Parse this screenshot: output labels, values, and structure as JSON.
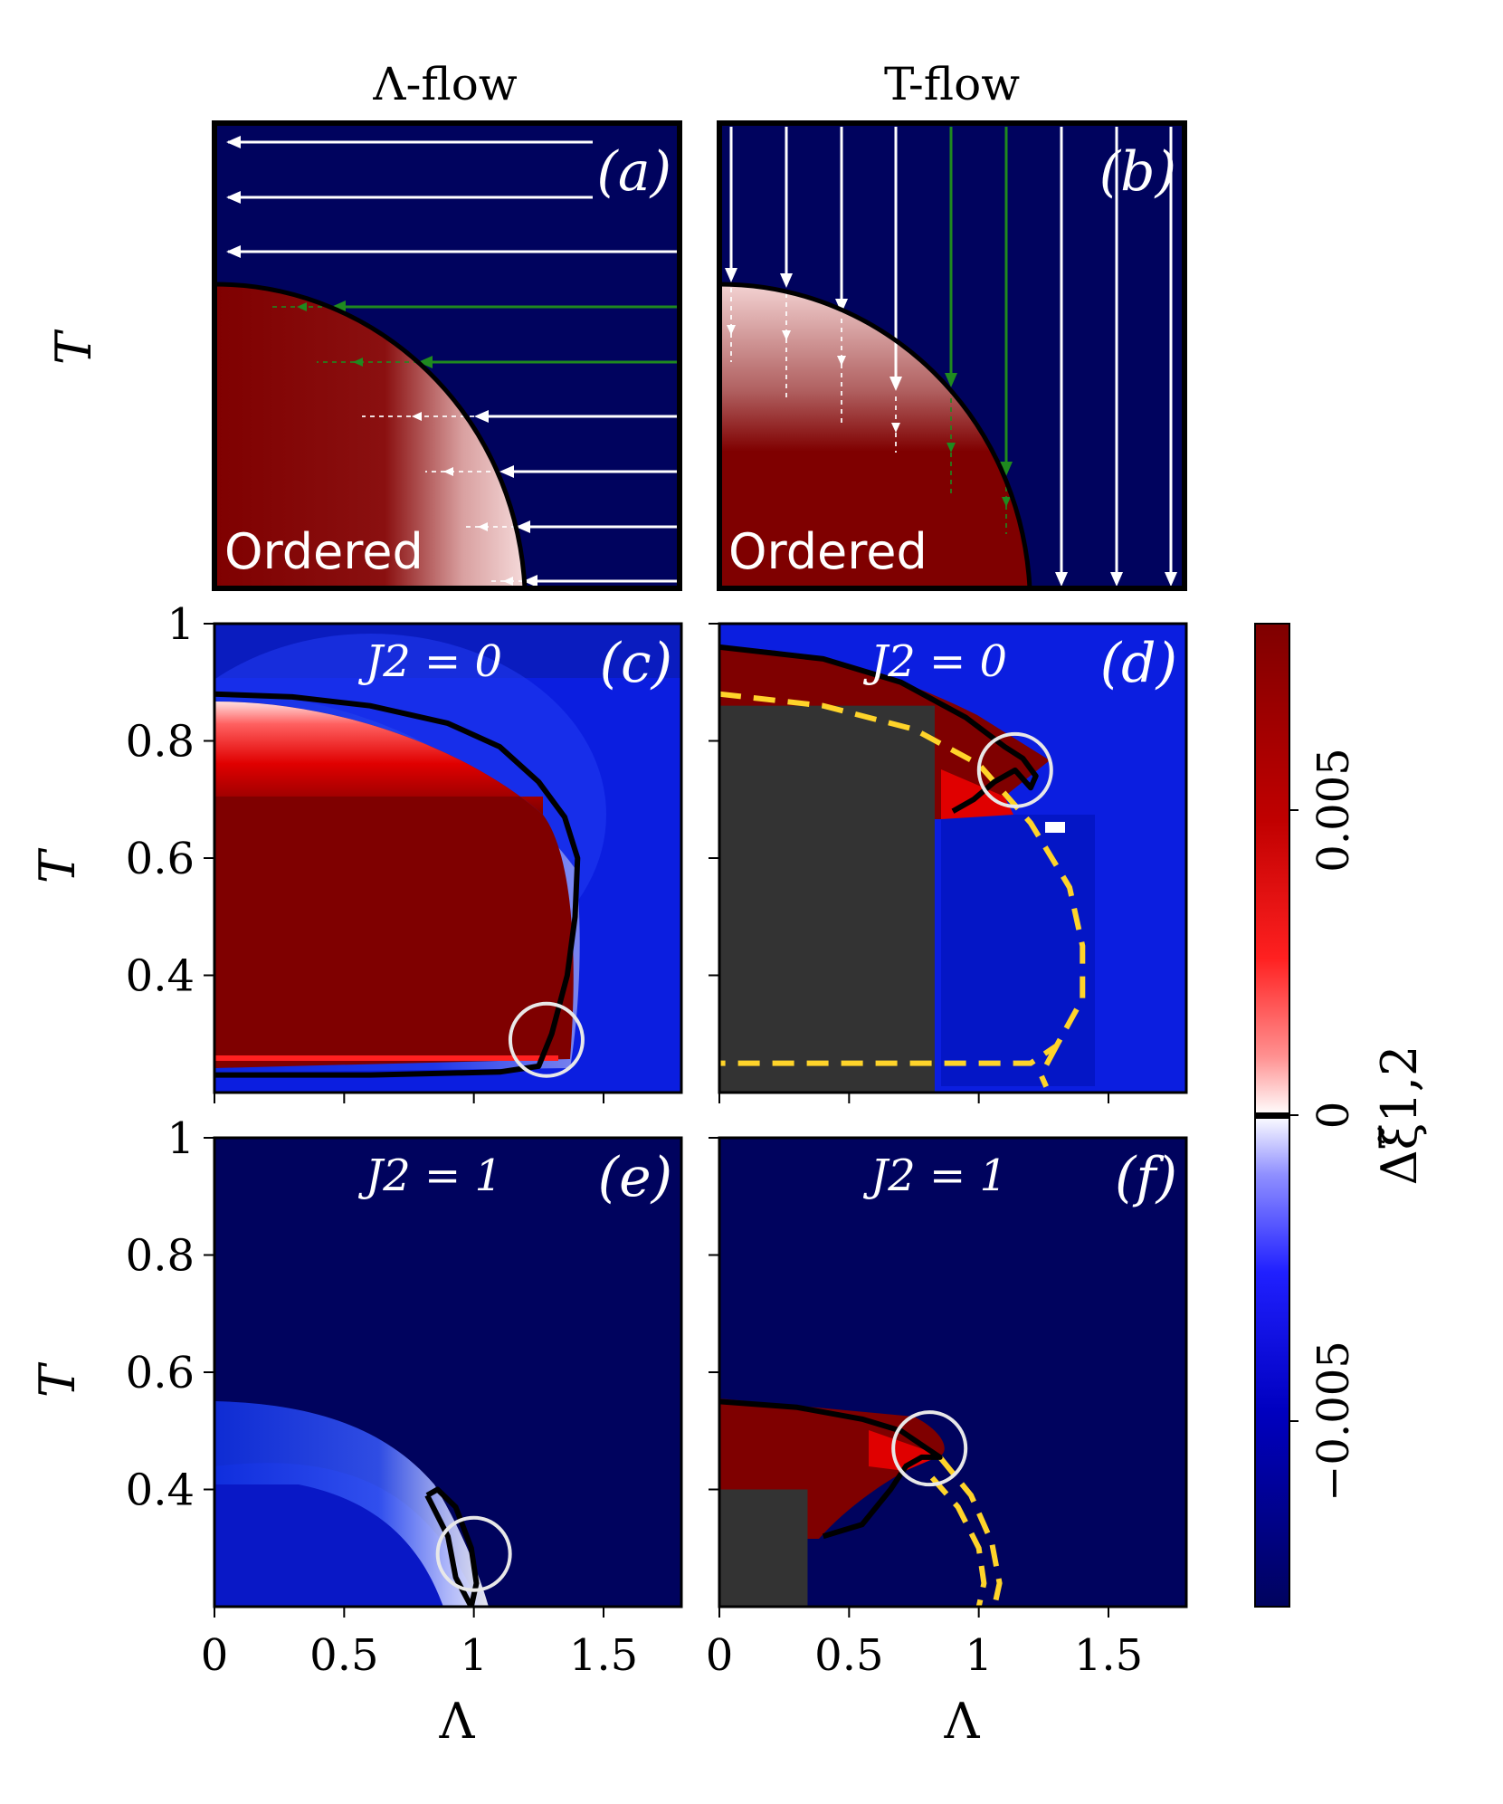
{
  "colors": {
    "deep_blue": "#00035e",
    "mid_blue": "#0b1ee0",
    "light_blue": "#2a45f0",
    "deep_red": "#7f0000",
    "red": "#e00000",
    "gray": "#333333",
    "yellow": "#ffd42a",
    "green": "#1f8a1f",
    "white": "#ffffff",
    "black": "#000000"
  },
  "columns": {
    "left_title": "Λ-flow",
    "right_title": "T-flow"
  },
  "schematic": {
    "ylabel": "T",
    "panel_a": {
      "label": "(a)",
      "region_label": "Ordered"
    },
    "panel_b": {
      "label": "(b)",
      "region_label": "Ordered"
    }
  },
  "colorbar": {
    "label": "Δξ̃1,2",
    "tick_labels": [
      "0.005",
      "0",
      "−0.005"
    ],
    "ticks": [
      0.005,
      0,
      -0.005
    ]
  },
  "chart_data": [
    {
      "id": "c",
      "type": "heatmap",
      "panel_label": "(c)",
      "annotation": "J2 = 0",
      "xlabel": "",
      "ylabel": "T",
      "xlim": [
        0,
        1.8
      ],
      "ylim": [
        0.2,
        1.0
      ],
      "yticks": [
        0.4,
        0.6,
        0.8,
        1.0
      ],
      "ytick_labels": [
        "0.4",
        "0.6",
        "0.8",
        "1"
      ],
      "xticks": [
        0,
        0.5,
        1.0,
        1.5
      ],
      "xtick_labels": [],
      "boundary": [
        [
          0,
          0.23
        ],
        [
          0.6,
          0.23
        ],
        [
          1.1,
          0.235
        ],
        [
          1.25,
          0.245
        ],
        [
          1.3,
          0.3
        ],
        [
          1.36,
          0.4
        ],
        [
          1.39,
          0.5
        ],
        [
          1.4,
          0.6
        ],
        [
          1.35,
          0.67
        ],
        [
          1.25,
          0.73
        ],
        [
          1.1,
          0.79
        ],
        [
          0.9,
          0.83
        ],
        [
          0.6,
          0.86
        ],
        [
          0.3,
          0.875
        ],
        [
          0,
          0.88
        ]
      ],
      "highlight_circle": {
        "x": 1.28,
        "y": 0.29
      }
    },
    {
      "id": "d",
      "type": "heatmap",
      "panel_label": "(d)",
      "annotation": "J2 = 0",
      "xlabel": "",
      "ylabel": "",
      "xlim": [
        0,
        1.8
      ],
      "ylim": [
        0.2,
        1.0
      ],
      "yticks": [
        0.4,
        0.6,
        0.8,
        1.0
      ],
      "xticks": [
        0,
        0.5,
        1.0,
        1.5
      ],
      "xtick_labels": [],
      "gray_region": {
        "x_max": 0.83,
        "y_max": 0.86
      },
      "boundary": [
        [
          0,
          0.96
        ],
        [
          0.4,
          0.94
        ],
        [
          0.7,
          0.9
        ],
        [
          0.95,
          0.84
        ],
        [
          1.1,
          0.79
        ],
        [
          1.17,
          0.77
        ],
        [
          1.22,
          0.74
        ],
        [
          1.2,
          0.72
        ],
        [
          1.14,
          0.75
        ],
        [
          1.06,
          0.73
        ],
        [
          0.98,
          0.7
        ],
        [
          0.9,
          0.68
        ]
      ],
      "dashed_boundary": [
        [
          0,
          0.88
        ],
        [
          0.4,
          0.86
        ],
        [
          0.75,
          0.82
        ],
        [
          1.0,
          0.76
        ],
        [
          1.2,
          0.66
        ],
        [
          1.35,
          0.55
        ],
        [
          1.4,
          0.45
        ],
        [
          1.4,
          0.36
        ],
        [
          1.3,
          0.28
        ],
        [
          1.2,
          0.25
        ],
        [
          0.8,
          0.25
        ],
        [
          0,
          0.25
        ]
      ],
      "dashed_tail": [
        [
          1.3,
          0.28
        ],
        [
          1.24,
          0.23
        ],
        [
          1.26,
          0.21
        ]
      ],
      "highlight_circle": {
        "x": 1.14,
        "y": 0.75
      }
    },
    {
      "id": "e",
      "type": "heatmap",
      "panel_label": "(e)",
      "annotation": "J2 = 1",
      "xlabel": "Λ",
      "ylabel": "T",
      "xlim": [
        0,
        1.8
      ],
      "ylim": [
        0.2,
        1.0
      ],
      "yticks": [
        0.4,
        0.6,
        0.8,
        1.0
      ],
      "ytick_labels": [
        "0.4",
        "0.6",
        "0.8",
        "1"
      ],
      "xticks": [
        0,
        0.5,
        1.0,
        1.5
      ],
      "xtick_labels": [
        "0",
        "0.5",
        "1",
        "1.5"
      ],
      "boundary": [
        [
          0.82,
          0.39
        ],
        [
          0.86,
          0.4
        ],
        [
          0.93,
          0.37
        ],
        [
          0.99,
          0.3
        ],
        [
          1.01,
          0.24
        ],
        [
          0.99,
          0.2
        ],
        [
          0.93,
          0.25
        ],
        [
          0.9,
          0.32
        ],
        [
          0.82,
          0.39
        ]
      ],
      "highlight_circle": {
        "x": 1.0,
        "y": 0.29
      }
    },
    {
      "id": "f",
      "type": "heatmap",
      "panel_label": "(f)",
      "annotation": "J2 = 1",
      "xlabel": "Λ",
      "ylabel": "",
      "xlim": [
        0,
        1.8
      ],
      "ylim": [
        0.2,
        1.0
      ],
      "yticks": [
        0.4,
        0.6,
        0.8,
        1.0
      ],
      "xticks": [
        0,
        0.5,
        1.0,
        1.5
      ],
      "xtick_labels": [
        "0",
        "0.5",
        "1",
        "1.5"
      ],
      "gray_region": {
        "x_max": 0.34,
        "y_max": 0.4
      },
      "boundary": [
        [
          0,
          0.55
        ],
        [
          0.3,
          0.54
        ],
        [
          0.55,
          0.52
        ],
        [
          0.7,
          0.5
        ],
        [
          0.8,
          0.47
        ],
        [
          0.85,
          0.455
        ],
        [
          0.78,
          0.455
        ],
        [
          0.72,
          0.44
        ],
        [
          0.66,
          0.4
        ],
        [
          0.55,
          0.34
        ],
        [
          0.4,
          0.32
        ]
      ],
      "dashed_boundary": [
        [
          0.82,
          0.42
        ],
        [
          0.92,
          0.37
        ],
        [
          1.0,
          0.3
        ],
        [
          1.02,
          0.24
        ],
        [
          1.0,
          0.2
        ]
      ],
      "dashed_tail": [
        [
          0.85,
          0.455
        ],
        [
          0.97,
          0.39
        ],
        [
          1.05,
          0.31
        ],
        [
          1.08,
          0.24
        ],
        [
          1.06,
          0.2
        ]
      ],
      "highlight_circle": {
        "x": 0.81,
        "y": 0.47
      }
    }
  ]
}
